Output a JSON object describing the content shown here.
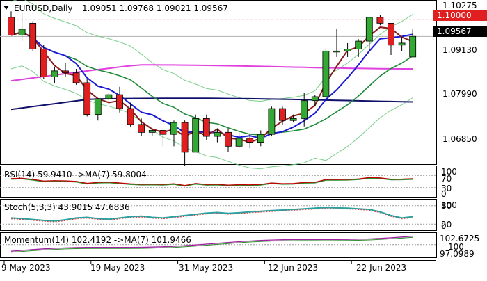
{
  "header": {
    "symbol": "EURUSD,Daily",
    "ohlc": "1.09051 1.09768 1.09021 1.09567"
  },
  "colors": {
    "bull": "#33a833",
    "bear": "#e02020",
    "sma_fast": "#8b1a1a",
    "sma_mid": "#1a1ad6",
    "sma_slow_green": "#1f8a3a",
    "sma_pink": "#e040e0",
    "sma_navy": "#10106a",
    "band": "#7acf8a",
    "resistance": "#e02020",
    "last_price_bg": "#000000"
  },
  "price_panel": {
    "y_ticks": [
      "1.10275",
      "1.09130",
      "1.07990",
      "1.06850"
    ],
    "resistance_label": "1.10000",
    "last_price_label": "1.09567"
  },
  "indicators": {
    "rsi": {
      "label": "RSI(14) 59.9410 ->MA(7) 59.8004",
      "ticks": [
        "100",
        "70",
        "30",
        "0"
      ]
    },
    "stoch": {
      "label": "Stoch(5,3,3) 43.9015 47.6836",
      "ticks": [
        "100",
        "80",
        "20",
        "0"
      ]
    },
    "momentum": {
      "label": "Momentum(14) 102.4192 ->MA(7) 101.9466",
      "ticks": [
        "102.6725",
        "100",
        "97.0989"
      ]
    }
  },
  "x_axis": {
    "labels": [
      "9 May 2023",
      "19 May 2023",
      "31 May 2023",
      "12 Jun 2023",
      "22 Jun 2023"
    ]
  },
  "chart_data": {
    "type": "candlestick",
    "symbol": "EURUSD",
    "timeframe": "Daily",
    "x_labels": [
      "9 May 2023",
      "19 May 2023",
      "31 May 2023",
      "12 Jun 2023",
      "22 Jun 2023"
    ],
    "ylim": [
      1.0635,
      1.1045
    ],
    "resistance_level": 1.1,
    "last_price": 1.09567,
    "candles": [
      {
        "o": 1.1005,
        "h": 1.102,
        "l": 1.096,
        "c": 1.096
      },
      {
        "o": 1.096,
        "h": 1.1015,
        "l": 1.0945,
        "c": 1.0975
      },
      {
        "o": 1.099,
        "h": 1.0995,
        "l": 1.092,
        "c": 1.0925
      },
      {
        "o": 1.0925,
        "h": 1.0935,
        "l": 1.085,
        "c": 1.0855
      },
      {
        "o": 1.0855,
        "h": 1.088,
        "l": 1.084,
        "c": 1.087
      },
      {
        "o": 1.087,
        "h": 1.089,
        "l": 1.0855,
        "c": 1.0865
      },
      {
        "o": 1.0865,
        "h": 1.0875,
        "l": 1.0835,
        "c": 1.084
      },
      {
        "o": 1.084,
        "h": 1.085,
        "l": 1.0755,
        "c": 1.076
      },
      {
        "o": 1.076,
        "h": 1.08,
        "l": 1.0745,
        "c": 1.08
      },
      {
        "o": 1.08,
        "h": 1.0815,
        "l": 1.079,
        "c": 1.081
      },
      {
        "o": 1.081,
        "h": 1.083,
        "l": 1.0765,
        "c": 1.0775
      },
      {
        "o": 1.0775,
        "h": 1.079,
        "l": 1.073,
        "c": 1.0735
      },
      {
        "o": 1.0735,
        "h": 1.075,
        "l": 1.0705,
        "c": 1.0715
      },
      {
        "o": 1.0715,
        "h": 1.0725,
        "l": 1.0705,
        "c": 1.072
      },
      {
        "o": 1.072,
        "h": 1.0725,
        "l": 1.068,
        "c": 1.071
      },
      {
        "o": 1.071,
        "h": 1.0745,
        "l": 1.068,
        "c": 1.074
      },
      {
        "o": 1.074,
        "h": 1.0745,
        "l": 1.063,
        "c": 1.0665
      },
      {
        "o": 1.0665,
        "h": 1.076,
        "l": 1.0665,
        "c": 1.075
      },
      {
        "o": 1.075,
        "h": 1.076,
        "l": 1.0695,
        "c": 1.0705
      },
      {
        "o": 1.0705,
        "h": 1.0725,
        "l": 1.069,
        "c": 1.0715
      },
      {
        "o": 1.0715,
        "h": 1.0725,
        "l": 1.0665,
        "c": 1.068
      },
      {
        "o": 1.068,
        "h": 1.0715,
        "l": 1.0675,
        "c": 1.07
      },
      {
        "o": 1.07,
        "h": 1.0712,
        "l": 1.0675,
        "c": 1.069
      },
      {
        "o": 1.069,
        "h": 1.072,
        "l": 1.068,
        "c": 1.071
      },
      {
        "o": 1.071,
        "h": 1.078,
        "l": 1.0705,
        "c": 1.0775
      },
      {
        "o": 1.0775,
        "h": 1.078,
        "l": 1.0735,
        "c": 1.0745
      },
      {
        "o": 1.0745,
        "h": 1.076,
        "l": 1.074,
        "c": 1.075
      },
      {
        "o": 1.075,
        "h": 1.0815,
        "l": 1.073,
        "c": 1.0795
      },
      {
        "o": 1.0795,
        "h": 1.081,
        "l": 1.078,
        "c": 1.0805
      },
      {
        "o": 1.0805,
        "h": 1.0925,
        "l": 1.0795,
        "c": 1.092
      },
      {
        "o": 1.092,
        "h": 1.0975,
        "l": 1.0905,
        "c": 1.092
      },
      {
        "o": 1.092,
        "h": 1.094,
        "l": 1.0905,
        "c": 1.0925
      },
      {
        "o": 1.0925,
        "h": 1.095,
        "l": 1.0905,
        "c": 1.0945
      },
      {
        "o": 1.0945,
        "h": 1.1005,
        "l": 1.092,
        "c": 1.1005
      },
      {
        "o": 1.1005,
        "h": 1.101,
        "l": 1.0985,
        "c": 1.099
      },
      {
        "o": 1.099,
        "h": 1.099,
        "l": 1.091,
        "c": 1.0935
      },
      {
        "o": 1.0935,
        "h": 1.0955,
        "l": 1.092,
        "c": 1.094
      },
      {
        "o": 1.0905,
        "h": 1.0975,
        "l": 1.0905,
        "c": 1.0957
      }
    ],
    "indicators": {
      "rsi": {
        "period": 14,
        "value": 59.941,
        "ma_period": 7,
        "ma": 59.8004,
        "levels": [
          70,
          30
        ],
        "ylim": [
          0,
          100
        ]
      },
      "stochastic": {
        "params": [
          5,
          3,
          3
        ],
        "k": 43.9015,
        "d": 47.6836,
        "levels": [
          80,
          20
        ],
        "ylim": [
          0,
          100
        ]
      },
      "momentum": {
        "period": 14,
        "value": 102.4192,
        "ma_period": 7,
        "ma": 101.9466,
        "levels": [
          100
        ],
        "ylim": [
          97.0989,
          102.6725
        ]
      }
    }
  }
}
